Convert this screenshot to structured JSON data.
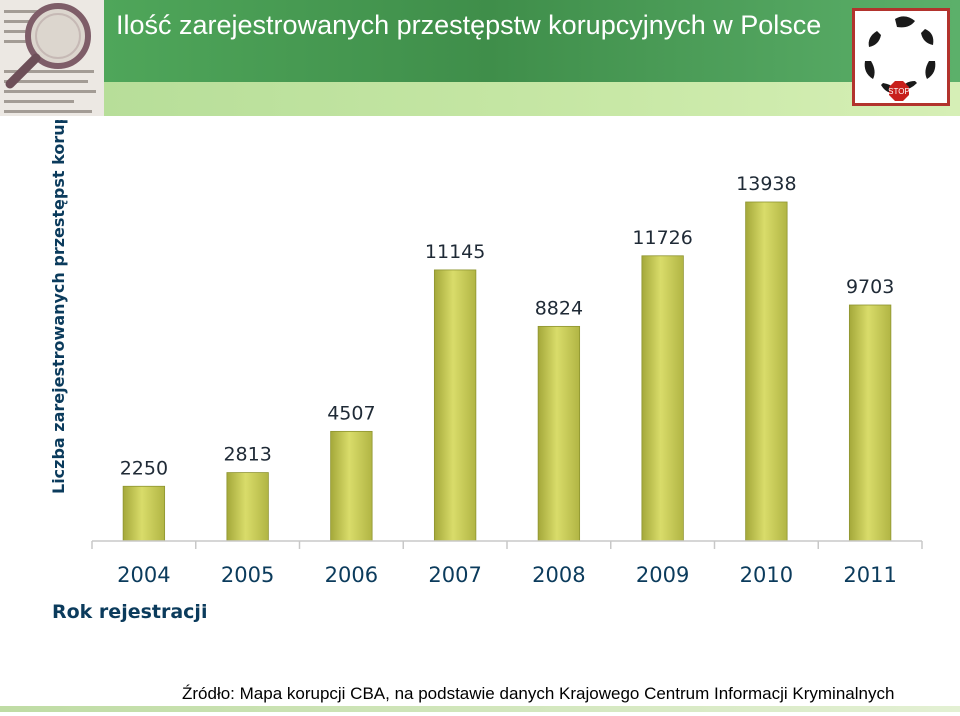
{
  "header": {
    "title": "Ilość zarejestrowanych przestępstw korupcyjnych w Polsce",
    "logo_badge": "STOP"
  },
  "colors": {
    "header_green": "#4fa65a",
    "header_light_green": "#c8e8a6",
    "bar_fill": "#cbcf55",
    "bar_edge": "#8e9430",
    "logo_border": "#b2332d",
    "axis_label_color": "#0b3b5c"
  },
  "chart_data": {
    "type": "bar",
    "categories": [
      "2004",
      "2005",
      "2006",
      "2007",
      "2008",
      "2009",
      "2010",
      "2011"
    ],
    "values": [
      2250,
      2813,
      4507,
      11145,
      8824,
      11726,
      13938,
      9703
    ],
    "data_labels": [
      "2250",
      "2813",
      "4507",
      "11145",
      "8824",
      "11726",
      "13938",
      "9703"
    ],
    "ylabel": "Liczba zarejestrowanych przestępst korupcyjnych",
    "xlabel": "Rok rejestracji",
    "ylim": [
      0,
      15500
    ],
    "grid": false,
    "legend": "none"
  },
  "footer": {
    "source": "Źródło: Mapa korupcji CBA, na podstawie danych Krajowego Centrum Informacji Kryminalnych"
  }
}
